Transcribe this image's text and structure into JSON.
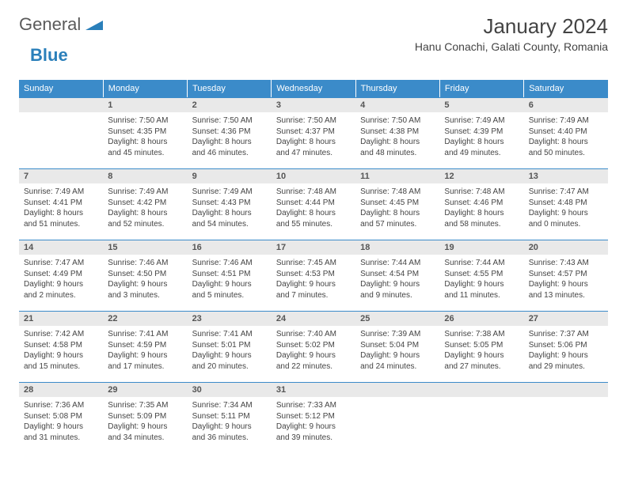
{
  "brand": {
    "part1": "General",
    "part2": "Blue"
  },
  "title": "January 2024",
  "location": "Hanu Conachi, Galati County, Romania",
  "colors": {
    "header_bg": "#3b8bc9",
    "header_text": "#ffffff",
    "daynum_bg": "#e9e9e9",
    "rule": "#3b8bc9",
    "body_text": "#444444",
    "logo_gray": "#5a5a5a",
    "logo_blue": "#2a7fba"
  },
  "days_of_week": [
    "Sunday",
    "Monday",
    "Tuesday",
    "Wednesday",
    "Thursday",
    "Friday",
    "Saturday"
  ],
  "weeks": [
    [
      {
        "n": "",
        "sr": "",
        "ss": "",
        "dl": ""
      },
      {
        "n": "1",
        "sr": "Sunrise: 7:50 AM",
        "ss": "Sunset: 4:35 PM",
        "dl": "Daylight: 8 hours and 45 minutes."
      },
      {
        "n": "2",
        "sr": "Sunrise: 7:50 AM",
        "ss": "Sunset: 4:36 PM",
        "dl": "Daylight: 8 hours and 46 minutes."
      },
      {
        "n": "3",
        "sr": "Sunrise: 7:50 AM",
        "ss": "Sunset: 4:37 PM",
        "dl": "Daylight: 8 hours and 47 minutes."
      },
      {
        "n": "4",
        "sr": "Sunrise: 7:50 AM",
        "ss": "Sunset: 4:38 PM",
        "dl": "Daylight: 8 hours and 48 minutes."
      },
      {
        "n": "5",
        "sr": "Sunrise: 7:49 AM",
        "ss": "Sunset: 4:39 PM",
        "dl": "Daylight: 8 hours and 49 minutes."
      },
      {
        "n": "6",
        "sr": "Sunrise: 7:49 AM",
        "ss": "Sunset: 4:40 PM",
        "dl": "Daylight: 8 hours and 50 minutes."
      }
    ],
    [
      {
        "n": "7",
        "sr": "Sunrise: 7:49 AM",
        "ss": "Sunset: 4:41 PM",
        "dl": "Daylight: 8 hours and 51 minutes."
      },
      {
        "n": "8",
        "sr": "Sunrise: 7:49 AM",
        "ss": "Sunset: 4:42 PM",
        "dl": "Daylight: 8 hours and 52 minutes."
      },
      {
        "n": "9",
        "sr": "Sunrise: 7:49 AM",
        "ss": "Sunset: 4:43 PM",
        "dl": "Daylight: 8 hours and 54 minutes."
      },
      {
        "n": "10",
        "sr": "Sunrise: 7:48 AM",
        "ss": "Sunset: 4:44 PM",
        "dl": "Daylight: 8 hours and 55 minutes."
      },
      {
        "n": "11",
        "sr": "Sunrise: 7:48 AM",
        "ss": "Sunset: 4:45 PM",
        "dl": "Daylight: 8 hours and 57 minutes."
      },
      {
        "n": "12",
        "sr": "Sunrise: 7:48 AM",
        "ss": "Sunset: 4:46 PM",
        "dl": "Daylight: 8 hours and 58 minutes."
      },
      {
        "n": "13",
        "sr": "Sunrise: 7:47 AM",
        "ss": "Sunset: 4:48 PM",
        "dl": "Daylight: 9 hours and 0 minutes."
      }
    ],
    [
      {
        "n": "14",
        "sr": "Sunrise: 7:47 AM",
        "ss": "Sunset: 4:49 PM",
        "dl": "Daylight: 9 hours and 2 minutes."
      },
      {
        "n": "15",
        "sr": "Sunrise: 7:46 AM",
        "ss": "Sunset: 4:50 PM",
        "dl": "Daylight: 9 hours and 3 minutes."
      },
      {
        "n": "16",
        "sr": "Sunrise: 7:46 AM",
        "ss": "Sunset: 4:51 PM",
        "dl": "Daylight: 9 hours and 5 minutes."
      },
      {
        "n": "17",
        "sr": "Sunrise: 7:45 AM",
        "ss": "Sunset: 4:53 PM",
        "dl": "Daylight: 9 hours and 7 minutes."
      },
      {
        "n": "18",
        "sr": "Sunrise: 7:44 AM",
        "ss": "Sunset: 4:54 PM",
        "dl": "Daylight: 9 hours and 9 minutes."
      },
      {
        "n": "19",
        "sr": "Sunrise: 7:44 AM",
        "ss": "Sunset: 4:55 PM",
        "dl": "Daylight: 9 hours and 11 minutes."
      },
      {
        "n": "20",
        "sr": "Sunrise: 7:43 AM",
        "ss": "Sunset: 4:57 PM",
        "dl": "Daylight: 9 hours and 13 minutes."
      }
    ],
    [
      {
        "n": "21",
        "sr": "Sunrise: 7:42 AM",
        "ss": "Sunset: 4:58 PM",
        "dl": "Daylight: 9 hours and 15 minutes."
      },
      {
        "n": "22",
        "sr": "Sunrise: 7:41 AM",
        "ss": "Sunset: 4:59 PM",
        "dl": "Daylight: 9 hours and 17 minutes."
      },
      {
        "n": "23",
        "sr": "Sunrise: 7:41 AM",
        "ss": "Sunset: 5:01 PM",
        "dl": "Daylight: 9 hours and 20 minutes."
      },
      {
        "n": "24",
        "sr": "Sunrise: 7:40 AM",
        "ss": "Sunset: 5:02 PM",
        "dl": "Daylight: 9 hours and 22 minutes."
      },
      {
        "n": "25",
        "sr": "Sunrise: 7:39 AM",
        "ss": "Sunset: 5:04 PM",
        "dl": "Daylight: 9 hours and 24 minutes."
      },
      {
        "n": "26",
        "sr": "Sunrise: 7:38 AM",
        "ss": "Sunset: 5:05 PM",
        "dl": "Daylight: 9 hours and 27 minutes."
      },
      {
        "n": "27",
        "sr": "Sunrise: 7:37 AM",
        "ss": "Sunset: 5:06 PM",
        "dl": "Daylight: 9 hours and 29 minutes."
      }
    ],
    [
      {
        "n": "28",
        "sr": "Sunrise: 7:36 AM",
        "ss": "Sunset: 5:08 PM",
        "dl": "Daylight: 9 hours and 31 minutes."
      },
      {
        "n": "29",
        "sr": "Sunrise: 7:35 AM",
        "ss": "Sunset: 5:09 PM",
        "dl": "Daylight: 9 hours and 34 minutes."
      },
      {
        "n": "30",
        "sr": "Sunrise: 7:34 AM",
        "ss": "Sunset: 5:11 PM",
        "dl": "Daylight: 9 hours and 36 minutes."
      },
      {
        "n": "31",
        "sr": "Sunrise: 7:33 AM",
        "ss": "Sunset: 5:12 PM",
        "dl": "Daylight: 9 hours and 39 minutes."
      },
      {
        "n": "",
        "sr": "",
        "ss": "",
        "dl": ""
      },
      {
        "n": "",
        "sr": "",
        "ss": "",
        "dl": ""
      },
      {
        "n": "",
        "sr": "",
        "ss": "",
        "dl": ""
      }
    ]
  ]
}
